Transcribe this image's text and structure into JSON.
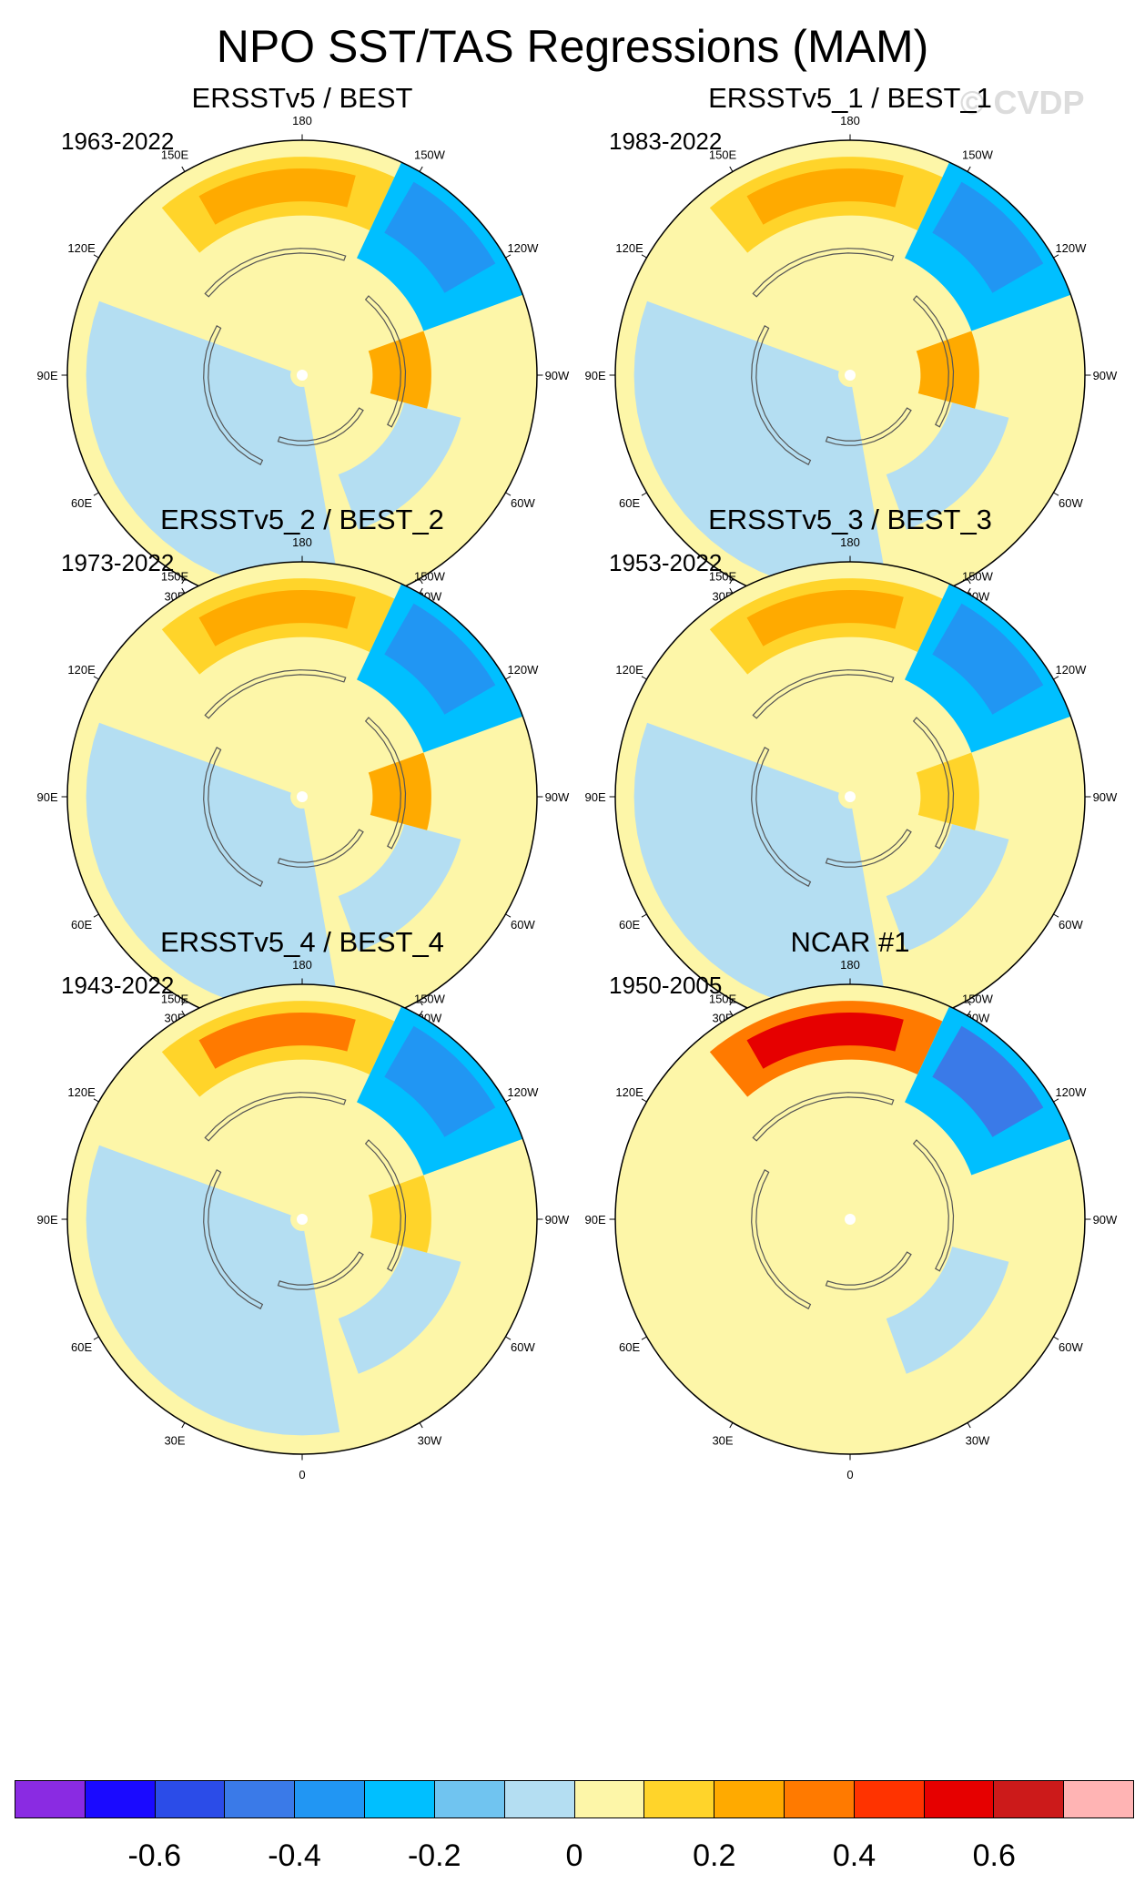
{
  "header": {
    "title": "NPO SST/TAS Regressions (MAM)",
    "watermark": "© CVDP"
  },
  "longitude_labels": [
    "180",
    "150E",
    "120E",
    "90E",
    "60E",
    "30E",
    "0",
    "30W",
    "60W",
    "90W",
    "120W",
    "150W"
  ],
  "chart_data": [
    {
      "type": "heatmap",
      "projection": "north-polar-stereographic",
      "title": "ERSSTv5 / BEST",
      "period": "1963-2022",
      "features": {
        "pacific_warm_max": 0.25,
        "pacific_cold_min": -0.35,
        "canada_warm_max": 0.25,
        "eurasia_anomaly": -0.05
      }
    },
    {
      "type": "heatmap",
      "projection": "north-polar-stereographic",
      "title": "ERSSTv5_1 / BEST_1",
      "period": "1983-2022",
      "features": {
        "pacific_warm_max": 0.25,
        "pacific_cold_min": -0.35,
        "canada_warm_max": 0.25,
        "eurasia_anomaly": -0.05
      }
    },
    {
      "type": "heatmap",
      "projection": "north-polar-stereographic",
      "title": "ERSSTv5_2 / BEST_2",
      "period": "1973-2022",
      "features": {
        "pacific_warm_max": 0.25,
        "pacific_cold_min": -0.35,
        "canada_warm_max": 0.25,
        "eurasia_anomaly": -0.05
      }
    },
    {
      "type": "heatmap",
      "projection": "north-polar-stereographic",
      "title": "ERSSTv5_3 / BEST_3",
      "period": "1953-2022",
      "features": {
        "pacific_warm_max": 0.25,
        "pacific_cold_min": -0.35,
        "canada_warm_max": 0.15,
        "eurasia_anomaly": -0.05
      }
    },
    {
      "type": "heatmap",
      "projection": "north-polar-stereographic",
      "title": "ERSSTv5_4 / BEST_4",
      "period": "1943-2022",
      "features": {
        "pacific_warm_max": 0.3,
        "pacific_cold_min": -0.35,
        "canada_warm_max": 0.15,
        "eurasia_anomaly": -0.05
      }
    },
    {
      "type": "heatmap",
      "projection": "north-polar-stereographic",
      "title": "NCAR #1",
      "period": "1950-2005",
      "features": {
        "pacific_warm_max": 0.55,
        "pacific_cold_min": -0.45,
        "canada_warm_max": 0.05,
        "eurasia_anomaly": 0.05
      }
    }
  ],
  "colorbar": {
    "colors": [
      "#8a2be2",
      "#1a0aff",
      "#2b4ce8",
      "#3a7ae8",
      "#2196f3",
      "#00bfff",
      "#70c4f0",
      "#b4def2",
      "#fdf6a8",
      "#ffd42a",
      "#ffaa00",
      "#ff7a00",
      "#ff3300",
      "#e60000",
      "#cc1a1a",
      "#ffb4b4"
    ],
    "tick_labels": [
      "-0.6",
      "-0.4",
      "-0.2",
      "0",
      "0.2",
      "0.4",
      "0.6"
    ]
  }
}
